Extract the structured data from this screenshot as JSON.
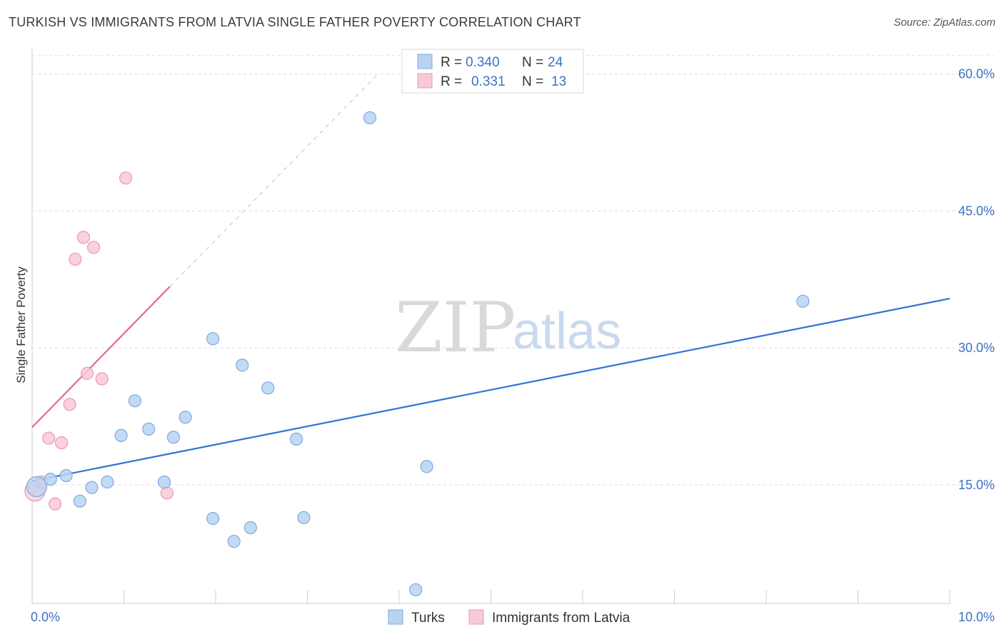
{
  "title": "TURKISH VS IMMIGRANTS FROM LATVIA SINGLE FATHER POVERTY CORRELATION CHART",
  "source": "Source: ZipAtlas.com",
  "watermark": {
    "zip": "ZIP",
    "atlas": "atlas"
  },
  "legend": {
    "rows": [
      {
        "r_label": "R =",
        "r_value": "0.340",
        "n_label": "N =",
        "n_value": "24",
        "color": "#b9d3f2",
        "stroke": "#7fa9de"
      },
      {
        "r_label": "R =",
        "r_value": "0.331",
        "n_label": "N =",
        "n_value": "13",
        "color": "#f9c9d6",
        "stroke": "#e79ab0"
      }
    ]
  },
  "chart_data": {
    "type": "scatter",
    "title": "TURKISH VS IMMIGRANTS FROM LATVIA SINGLE FATHER POVERTY CORRELATION CHART",
    "xlabel": "",
    "ylabel": "Single Father Poverty",
    "xlim": [
      0,
      10
    ],
    "ylim": [
      2,
      62
    ],
    "x_tick_labels": [
      "0.0%",
      "10.0%"
    ],
    "y_ticks": [
      15,
      30,
      45,
      60
    ],
    "y_tick_labels": [
      "15.0%",
      "30.0%",
      "45.0%",
      "60.0%"
    ],
    "grid": true,
    "legend_position": "top-center",
    "series": [
      {
        "name": "Turks",
        "color": "#b9d3f2",
        "stroke": "#7fa9de",
        "line_color": "#2f74cf",
        "points": [
          {
            "x": 0.05,
            "y": 14.8
          },
          {
            "x": 0.2,
            "y": 15.6
          },
          {
            "x": 0.37,
            "y": 16.0
          },
          {
            "x": 0.52,
            "y": 13.2
          },
          {
            "x": 0.65,
            "y": 14.7
          },
          {
            "x": 0.82,
            "y": 15.3
          },
          {
            "x": 0.97,
            "y": 20.4
          },
          {
            "x": 1.12,
            "y": 24.2
          },
          {
            "x": 1.27,
            "y": 21.1
          },
          {
            "x": 1.44,
            "y": 15.3
          },
          {
            "x": 1.54,
            "y": 20.2
          },
          {
            "x": 1.67,
            "y": 22.4
          },
          {
            "x": 1.97,
            "y": 31.0
          },
          {
            "x": 1.97,
            "y": 11.3
          },
          {
            "x": 2.2,
            "y": 8.8
          },
          {
            "x": 2.29,
            "y": 28.1
          },
          {
            "x": 2.38,
            "y": 10.3
          },
          {
            "x": 2.57,
            "y": 25.6
          },
          {
            "x": 2.88,
            "y": 20.0
          },
          {
            "x": 2.96,
            "y": 11.4
          },
          {
            "x": 3.68,
            "y": 55.2
          },
          {
            "x": 4.18,
            "y": 3.5
          },
          {
            "x": 4.3,
            "y": 17.0
          },
          {
            "x": 8.4,
            "y": 35.1
          }
        ],
        "trend": {
          "x": [
            0.0,
            10.0
          ],
          "y": [
            15.4,
            35.4
          ]
        }
      },
      {
        "name": "Immigrants from Latvia",
        "color": "#f9c9d6",
        "stroke": "#e79ab0",
        "line_color": "#e8668c",
        "points": [
          {
            "x": 0.03,
            "y": 14.3
          },
          {
            "x": 0.1,
            "y": 15.3
          },
          {
            "x": 0.18,
            "y": 20.1
          },
          {
            "x": 0.25,
            "y": 12.9
          },
          {
            "x": 0.32,
            "y": 19.6
          },
          {
            "x": 0.41,
            "y": 23.8
          },
          {
            "x": 0.47,
            "y": 39.7
          },
          {
            "x": 0.56,
            "y": 42.1
          },
          {
            "x": 0.6,
            "y": 27.2
          },
          {
            "x": 0.67,
            "y": 41.0
          },
          {
            "x": 0.76,
            "y": 26.6
          },
          {
            "x": 1.02,
            "y": 48.6
          },
          {
            "x": 1.47,
            "y": 14.1
          }
        ],
        "trend": {
          "x": [
            0.0,
            1.5
          ],
          "y": [
            21.3,
            36.7
          ]
        },
        "trend_extension": {
          "x": [
            1.5,
            3.77
          ],
          "y": [
            36.7,
            60.0
          ]
        }
      }
    ]
  }
}
